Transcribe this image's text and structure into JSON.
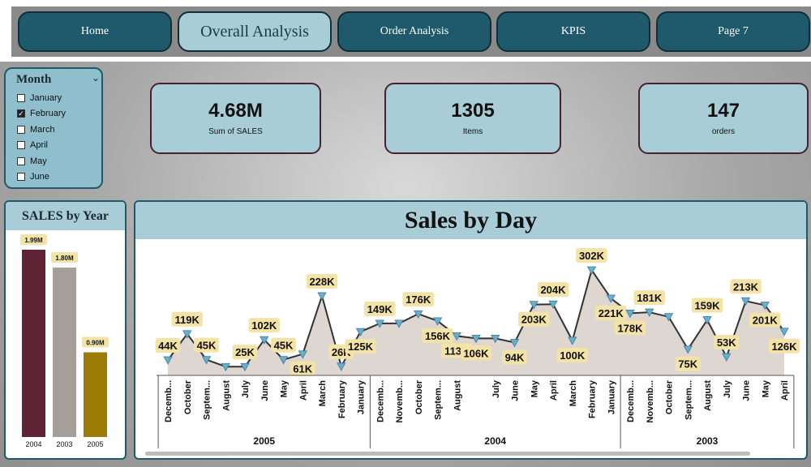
{
  "nav": {
    "tabs": [
      {
        "label": "Home",
        "active": false
      },
      {
        "label": "Overall Analysis",
        "active": true
      },
      {
        "label": "Order Analysis",
        "active": false
      },
      {
        "label": "KPIS",
        "active": false
      },
      {
        "label": "Page 7",
        "active": false
      }
    ]
  },
  "slicer": {
    "title": "Month",
    "chevron_icon": "chevron-down-icon",
    "items": [
      {
        "label": "January",
        "checked": false
      },
      {
        "label": "February",
        "checked": true
      },
      {
        "label": "March",
        "checked": false
      },
      {
        "label": "April",
        "checked": false
      },
      {
        "label": "May",
        "checked": false
      },
      {
        "label": "June",
        "checked": false
      }
    ]
  },
  "kpis": [
    {
      "value": "4.68M",
      "label": "Sum of SALES"
    },
    {
      "value": "1305",
      "label": "Items"
    },
    {
      "value": "147",
      "label": "orders"
    }
  ],
  "colors": {
    "nav_button": "#1e5a6b",
    "nav_active": "#a9cdd6",
    "card": "#a9cdd6",
    "line": "#333333",
    "area": "#ddd6d1",
    "marker": "#6aaecb",
    "label_bg": "#f4e3a6"
  },
  "sales_by_year": {
    "title": "SALES by Year",
    "chart_data": {
      "type": "bar",
      "categories": [
        "2004",
        "2003",
        "2005"
      ],
      "values": [
        1.99,
        1.8,
        0.9
      ],
      "value_labels": [
        "1.99M",
        "1.80M",
        "0.90M"
      ],
      "colors": [
        "#5e2335",
        "#a69e98",
        "#9c7c06"
      ],
      "ylim": [
        0,
        1.99
      ]
    }
  },
  "sales_by_day": {
    "title": "Sales by Day",
    "chart_data": {
      "type": "area",
      "ylim": [
        0,
        302
      ],
      "points": [
        {
          "month": "Decemb...",
          "year": "2005",
          "value": 44,
          "label": "44K"
        },
        {
          "month": "October",
          "year": "2005",
          "value": 119,
          "label": "119K"
        },
        {
          "month": "Septem...",
          "year": "2005",
          "value": 45,
          "label": "45K"
        },
        {
          "month": "August",
          "year": "2005",
          "value": 25,
          "label": ""
        },
        {
          "month": "July",
          "year": "2005",
          "value": 25,
          "label": "25K"
        },
        {
          "month": "June",
          "year": "2005",
          "value": 102,
          "label": "102K"
        },
        {
          "month": "May",
          "year": "2005",
          "value": 45,
          "label": "45K"
        },
        {
          "month": "April",
          "year": "2005",
          "value": 61,
          "label": "61K"
        },
        {
          "month": "March",
          "year": "2005",
          "value": 228,
          "label": "228K"
        },
        {
          "month": "February",
          "year": "2005",
          "value": 26,
          "label": "26K"
        },
        {
          "month": "January",
          "year": "2005",
          "value": 125,
          "label": "125K"
        },
        {
          "month": "Decemb...",
          "year": "2004",
          "value": 149,
          "label": "149K"
        },
        {
          "month": "Novemb...",
          "year": "2004",
          "value": 149,
          "label": ""
        },
        {
          "month": "October",
          "year": "2004",
          "value": 176,
          "label": "176K"
        },
        {
          "month": "Septem...",
          "year": "2004",
          "value": 156,
          "label": "156K"
        },
        {
          "month": "August",
          "year": "2004",
          "value": 113,
          "label": "113K"
        },
        {
          "month": "",
          "year": "2004",
          "value": 106,
          "label": "106K"
        },
        {
          "month": "July",
          "year": "2004",
          "value": 106,
          "label": ""
        },
        {
          "month": "June",
          "year": "2004",
          "value": 94,
          "label": "94K"
        },
        {
          "month": "May",
          "year": "2004",
          "value": 203,
          "label": "203K"
        },
        {
          "month": "April",
          "year": "2004",
          "value": 204,
          "label": "204K"
        },
        {
          "month": "March",
          "year": "2004",
          "value": 100,
          "label": "100K"
        },
        {
          "month": "February",
          "year": "2004",
          "value": 302,
          "label": "302K"
        },
        {
          "month": "January",
          "year": "2004",
          "value": 221,
          "label": "221K"
        },
        {
          "month": "Decemb...",
          "year": "2003",
          "value": 178,
          "label": "178K"
        },
        {
          "month": "Novemb...",
          "year": "2003",
          "value": 181,
          "label": "181K"
        },
        {
          "month": "October",
          "year": "2003",
          "value": 168,
          "label": ""
        },
        {
          "month": "Septem...",
          "year": "2003",
          "value": 75,
          "label": "75K"
        },
        {
          "month": "August",
          "year": "2003",
          "value": 159,
          "label": "159K"
        },
        {
          "month": "July",
          "year": "2003",
          "value": 53,
          "label": "53K"
        },
        {
          "month": "June",
          "year": "2003",
          "value": 213,
          "label": "213K"
        },
        {
          "month": "May",
          "year": "2003",
          "value": 201,
          "label": "201K"
        },
        {
          "month": "April",
          "year": "2003",
          "value": 126,
          "label": "126K"
        }
      ],
      "years": [
        "2005",
        "2004",
        "2003"
      ]
    }
  }
}
